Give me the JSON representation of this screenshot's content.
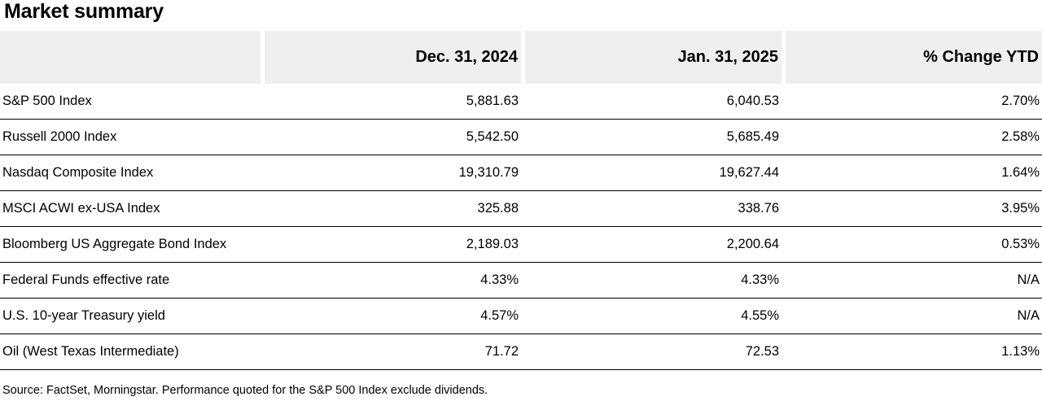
{
  "title": "Market summary",
  "table": {
    "headers": [
      "",
      "Dec. 31, 2024",
      "Jan. 31, 2025",
      "% Change YTD"
    ],
    "rows": [
      {
        "label": "S&P 500 Index",
        "dec": "5,881.63",
        "jan": "6,040.53",
        "change": "2.70%"
      },
      {
        "label": "Russell 2000 Index",
        "dec": "5,542.50",
        "jan": "5,685.49",
        "change": "2.58%"
      },
      {
        "label": "Nasdaq Composite Index",
        "dec": "19,310.79",
        "jan": "19,627.44",
        "change": "1.64%"
      },
      {
        "label": "MSCI ACWI ex-USA Index",
        "dec": "325.88",
        "jan": "338.76",
        "change": "3.95%"
      },
      {
        "label": "Bloomberg US Aggregate Bond Index",
        "dec": "2,189.03",
        "jan": "2,200.64",
        "change": "0.53%"
      },
      {
        "label": "Federal Funds effective rate",
        "dec": "4.33%",
        "jan": "4.33%",
        "change": "N/A"
      },
      {
        "label": "U.S. 10-year Treasury yield",
        "dec": "4.57%",
        "jan": "4.55%",
        "change": "N/A"
      },
      {
        "label": "Oil (West Texas Intermediate)",
        "dec": "71.72",
        "jan": "72.53",
        "change": "1.13%"
      }
    ]
  },
  "footnote": "Source: FactSet, Morningstar. Performance quoted for the S&P 500 Index exclude dividends.",
  "colors": {
    "header_background": "#efefef",
    "row_divider": "#000000",
    "text": "#000000"
  }
}
